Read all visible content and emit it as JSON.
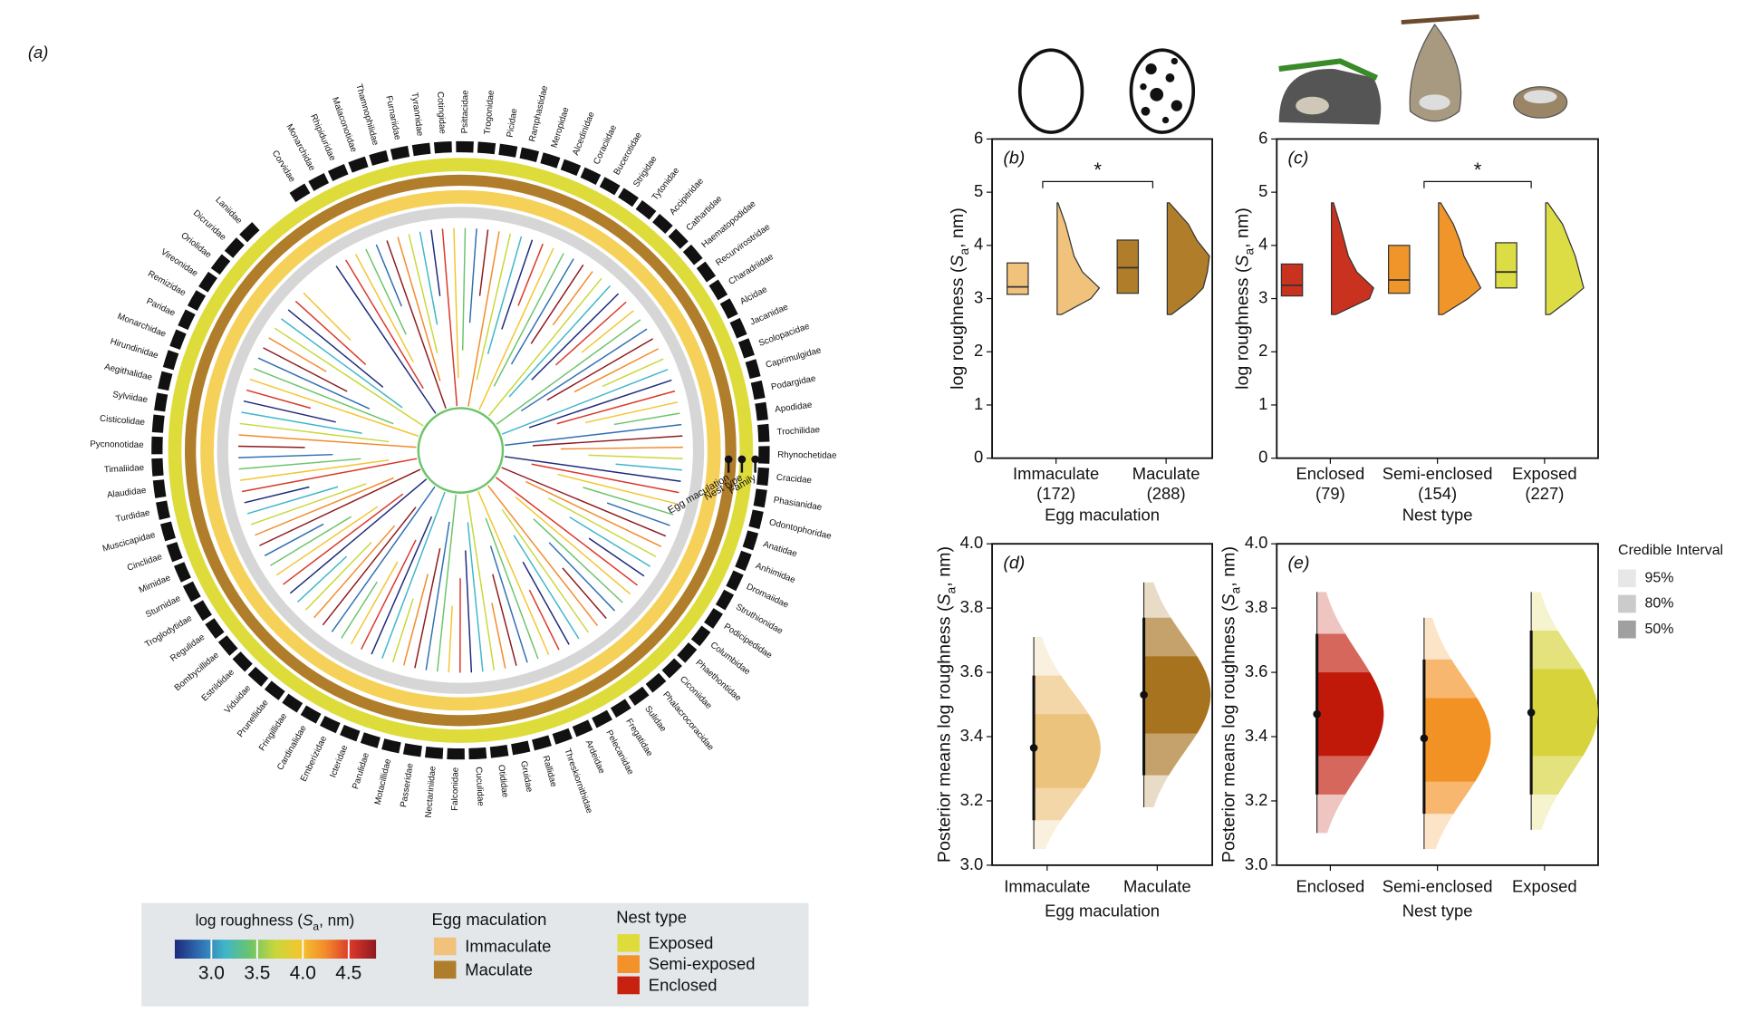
{
  "chart_data": [
    {
      "type": "phylogeny",
      "panel_label": "(a)",
      "families": [
        "Corvidae",
        "Monarchidae",
        "Rhipiduridae",
        "Malaconotidae",
        "Thamnophilidae",
        "Furnariidae",
        "Tyrannidae",
        "Cotingidae",
        "Psittacidae",
        "Trogonidae",
        "Picidae",
        "Ramphastidae",
        "Meropidae",
        "Alcedinidae",
        "Coraciidae",
        "Bucerotidae",
        "Strigidae",
        "Tytonidae",
        "Accipitridae",
        "Cathartidae",
        "Haematopodidae",
        "Recurvirostridae",
        "Charadriidae",
        "Alcidae",
        "Jacanidae",
        "Scolopacidae",
        "Caprimulgidae",
        "Podargidae",
        "Apodidae",
        "Trochilidae",
        "Rhynochetidae",
        "Cracidae",
        "Phasianidae",
        "Odontophoridae",
        "Anatidae",
        "Anhimidae",
        "Dromaiidae",
        "Struthionidae",
        "Podicipedidae",
        "Columbidae",
        "Phaethontidae",
        "Ciconiidae",
        "Phalacrocoracidae",
        "Sulidae",
        "Fregatidae",
        "Pelecanidae",
        "Ardeidae",
        "Threskiornithidae",
        "Rallidae",
        "Gruidae",
        "Otididae",
        "Cuculidae",
        "Falconidae",
        "Nectariniidae",
        "Passeridae",
        "Motacillidae",
        "Parulidae",
        "Icteridae",
        "Emberizidae",
        "Cardinalidae",
        "Fringillidae",
        "Prunellidae",
        "Viduidae",
        "Estrildidae",
        "Bombycillidae",
        "Regulidae",
        "Troglodytidae",
        "Sturnidae",
        "Mimidae",
        "Cinclidae",
        "Muscicapidae",
        "Turdidae",
        "Alaudidae",
        "Timaliidae",
        "Pycnonotidae",
        "Cisticolidae",
        "Sylviidae",
        "Aegithalidae",
        "Hirundinidae",
        "Monarchidae",
        "Paridae",
        "Remizidae",
        "Vireonidae",
        "Oriolidae",
        "Dicruridae",
        "Laniidae"
      ],
      "ring_labels": [
        "Egg maculation",
        "Nest type",
        "Family"
      ],
      "colorbar_title": [
        "log roughness (",
        "S",
        "a",
        ", nm)"
      ],
      "colorscale": [
        "#1d2a7a",
        "#2f6fb3",
        "#3fb6c8",
        "#6cc46a",
        "#c9d73a",
        "#f3c530",
        "#f38a2b",
        "#d9372a",
        "#8e1a1f"
      ],
      "clim": [
        2.6,
        4.8
      ],
      "colorbar_ticks": [
        {
          "value": 3,
          "label": "3.0"
        },
        {
          "value": 3.5,
          "label": "3.5"
        },
        {
          "value": 4,
          "label": "4.0"
        },
        {
          "value": 4.5,
          "label": "4.5"
        }
      ],
      "egg_legend": {
        "title": "Egg maculation",
        "items": [
          {
            "name": "Immaculate",
            "color": "#f0c27b"
          },
          {
            "name": "Maculate",
            "color": "#b07d2a"
          }
        ]
      },
      "nest_legend": {
        "title": "Nest type",
        "items": [
          {
            "name": "Exposed",
            "color": "#dedc3a"
          },
          {
            "name": "Semi-exposed",
            "color": "#f3922a"
          },
          {
            "name": "Enclosed",
            "color": "#c8210f"
          }
        ]
      }
    },
    {
      "type": "raincloud",
      "panel_label": "(b)",
      "categories": [
        "Immaculate",
        "Maculate"
      ],
      "counts": [
        "(172)",
        "(288)"
      ],
      "x_label": "Egg maculation",
      "y_label": [
        "log roughness (",
        "S",
        "a",
        ", nm)"
      ],
      "colors": [
        "#f0c27b",
        "#b07d2a"
      ],
      "boxes": [
        {
          "q1": 3.08,
          "median": 3.22,
          "q3": 3.67
        },
        {
          "q1": 3.1,
          "median": 3.58,
          "q3": 4.1
        }
      ],
      "density_y": [
        2.7,
        3.0,
        3.2,
        3.5,
        3.8,
        4.1,
        4.4,
        4.8
      ],
      "density": [
        [
          0.1,
          0.8,
          1.0,
          0.6,
          0.4,
          0.3,
          0.2,
          0.02
        ],
        [
          0.1,
          0.6,
          0.85,
          0.95,
          1.0,
          0.7,
          0.5,
          0.05
        ]
      ],
      "significance": {
        "pair": [
          0,
          1
        ],
        "label": "*",
        "y": 5.2
      },
      "ylim": [
        0,
        6
      ],
      "yticks": [
        0,
        1,
        2,
        3,
        4,
        5,
        6
      ]
    },
    {
      "type": "raincloud",
      "panel_label": "(c)",
      "categories": [
        "Enclosed",
        "Semi-enclosed",
        "Exposed"
      ],
      "counts": [
        "(79)",
        "(154)",
        "(227)"
      ],
      "x_label": "Nest type",
      "y_label": [
        "log roughness (",
        "S",
        "a",
        ", nm)"
      ],
      "colors": [
        "#c9321e",
        "#f0952a",
        "#dcdc45"
      ],
      "boxes": [
        {
          "q1": 3.05,
          "median": 3.25,
          "q3": 3.65
        },
        {
          "q1": 3.1,
          "median": 3.35,
          "q3": 4.0
        },
        {
          "q1": 3.2,
          "median": 3.5,
          "q3": 4.05
        }
      ],
      "density_y": [
        2.7,
        3.0,
        3.2,
        3.5,
        3.8,
        4.1,
        4.4,
        4.8
      ],
      "density": [
        [
          0.1,
          0.9,
          1.0,
          0.6,
          0.4,
          0.3,
          0.2,
          0.05
        ],
        [
          0.1,
          0.7,
          1.0,
          0.8,
          0.6,
          0.5,
          0.35,
          0.05
        ],
        [
          0.1,
          0.6,
          0.9,
          0.8,
          0.7,
          0.55,
          0.4,
          0.05
        ]
      ],
      "significance": {
        "pair": [
          1,
          2
        ],
        "label": "*",
        "y": 5.2
      },
      "ylim": [
        0,
        6
      ],
      "yticks": [
        0,
        1,
        2,
        3,
        4,
        5,
        6
      ]
    },
    {
      "type": "posterior",
      "panel_label": "(d)",
      "categories": [
        "Immaculate",
        "Maculate"
      ],
      "x_label": "Egg maculation",
      "y_label": [
        "Posterior means log roughness (",
        "S",
        "a",
        ", nm)"
      ],
      "colors": [
        "#ecc37c",
        "#a8731f"
      ],
      "groups": [
        {
          "mean": 3.365,
          "ci95": [
            3.05,
            3.71
          ],
          "ci80": [
            3.14,
            3.59
          ],
          "ci50": [
            3.24,
            3.47
          ]
        },
        {
          "mean": 3.53,
          "ci95": [
            3.18,
            3.88
          ],
          "ci80": [
            3.28,
            3.77
          ],
          "ci50": [
            3.41,
            3.65
          ]
        }
      ],
      "ylim": [
        3,
        4
      ],
      "yticks": [
        {
          "value": 3,
          "label": "3.0"
        },
        3.2,
        3.4,
        3.6,
        3.8,
        {
          "value": 4,
          "label": "4.0"
        }
      ]
    },
    {
      "type": "posterior",
      "panel_label": "(e)",
      "categories": [
        "Enclosed",
        "Semi-enclosed",
        "Exposed"
      ],
      "x_label": "Nest type",
      "y_label": [
        "Posterior means log roughness (",
        "S",
        "a",
        ", nm)"
      ],
      "colors": [
        "#c0190a",
        "#f39224",
        "#d6d43a"
      ],
      "groups": [
        {
          "mean": 3.47,
          "ci95": [
            3.1,
            3.85
          ],
          "ci80": [
            3.22,
            3.72
          ],
          "ci50": [
            3.34,
            3.6
          ]
        },
        {
          "mean": 3.395,
          "ci95": [
            3.05,
            3.77
          ],
          "ci80": [
            3.16,
            3.64
          ],
          "ci50": [
            3.26,
            3.52
          ]
        },
        {
          "mean": 3.475,
          "ci95": [
            3.11,
            3.85
          ],
          "ci80": [
            3.22,
            3.73
          ],
          "ci50": [
            3.34,
            3.61
          ]
        }
      ],
      "ylim": [
        3,
        4
      ],
      "yticks": [
        {
          "value": 3,
          "label": "3.0"
        },
        3.2,
        3.4,
        3.6,
        3.8,
        {
          "value": 4,
          "label": "4.0"
        }
      ],
      "legend_title": "Credible Interval",
      "intervals": [
        "95%",
        "80%",
        "50%"
      ]
    }
  ]
}
